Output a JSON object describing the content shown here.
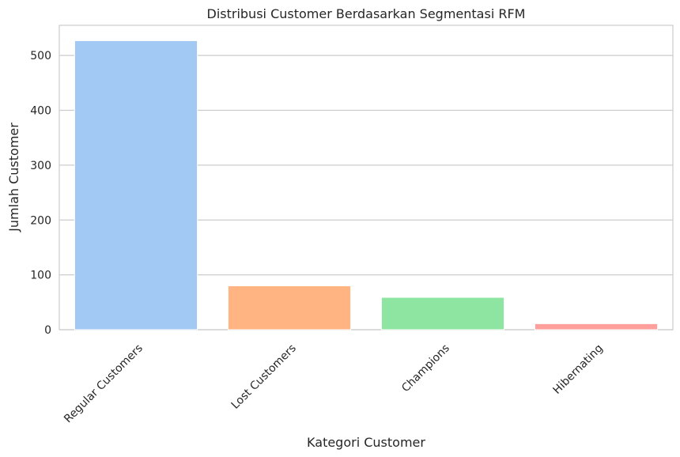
{
  "chart_data": {
    "type": "bar",
    "title": "Distribusi Customer Berdasarkan Segmentasi RFM",
    "xlabel": "Kategori Customer",
    "ylabel": "Jumlah Customer",
    "categories": [
      "Regular Customers",
      "Lost Customers",
      "Champions",
      "Hibernating"
    ],
    "values": [
      527,
      80,
      59,
      11
    ],
    "colors": [
      "#a1c9f4",
      "#ffb482",
      "#8de5a1",
      "#ff9f9b"
    ],
    "ylim": [
      0,
      555
    ],
    "yticks": [
      0,
      100,
      200,
      300,
      400,
      500
    ],
    "grid": true,
    "legend": "none"
  }
}
